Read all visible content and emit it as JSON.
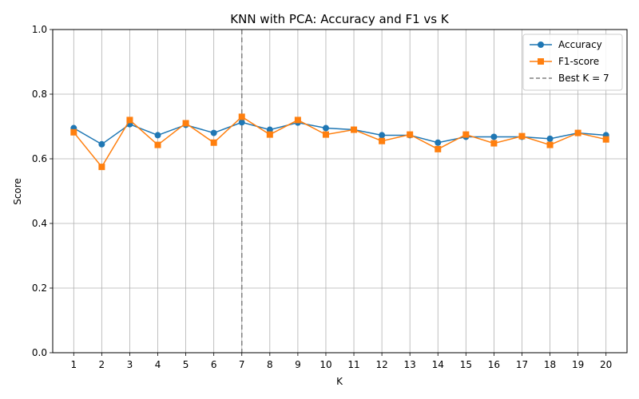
{
  "chart_data": {
    "type": "line",
    "title": "KNN with PCA: Accuracy and F1 vs K",
    "xlabel": "K",
    "ylabel": "Score",
    "ylim": [
      0.0,
      1.0
    ],
    "xlim": [
      0.25,
      20.75
    ],
    "y_ticks": [
      0.0,
      0.2,
      0.4,
      0.6,
      0.8,
      1.0
    ],
    "y_tick_labels": [
      "0.0",
      "0.2",
      "0.4",
      "0.6",
      "0.8",
      "1.0"
    ],
    "x": [
      1,
      2,
      3,
      4,
      5,
      6,
      7,
      8,
      9,
      10,
      11,
      12,
      13,
      14,
      15,
      16,
      17,
      18,
      19,
      20
    ],
    "x_tick_labels": [
      "1",
      "2",
      "3",
      "4",
      "5",
      "6",
      "7",
      "8",
      "9",
      "10",
      "11",
      "12",
      "13",
      "14",
      "15",
      "16",
      "17",
      "18",
      "19",
      "20"
    ],
    "grid": true,
    "legend_position": "top-right",
    "series": [
      {
        "name": "Accuracy",
        "color": "#1f77b4",
        "marker": "circle",
        "values": [
          0.695,
          0.645,
          0.707,
          0.673,
          0.705,
          0.68,
          0.713,
          0.69,
          0.712,
          0.695,
          0.69,
          0.673,
          0.673,
          0.65,
          0.668,
          0.668,
          0.668,
          0.662,
          0.68,
          0.673
        ]
      },
      {
        "name": "F1-score",
        "color": "#ff7f0e",
        "marker": "square",
        "values": [
          0.682,
          0.575,
          0.72,
          0.643,
          0.71,
          0.65,
          0.73,
          0.675,
          0.72,
          0.675,
          0.69,
          0.655,
          0.675,
          0.63,
          0.675,
          0.648,
          0.67,
          0.643,
          0.68,
          0.66
        ]
      }
    ],
    "reference_line": {
      "name": "Best K = 7",
      "x": 7,
      "color": "#808080",
      "style": "dashed"
    }
  }
}
